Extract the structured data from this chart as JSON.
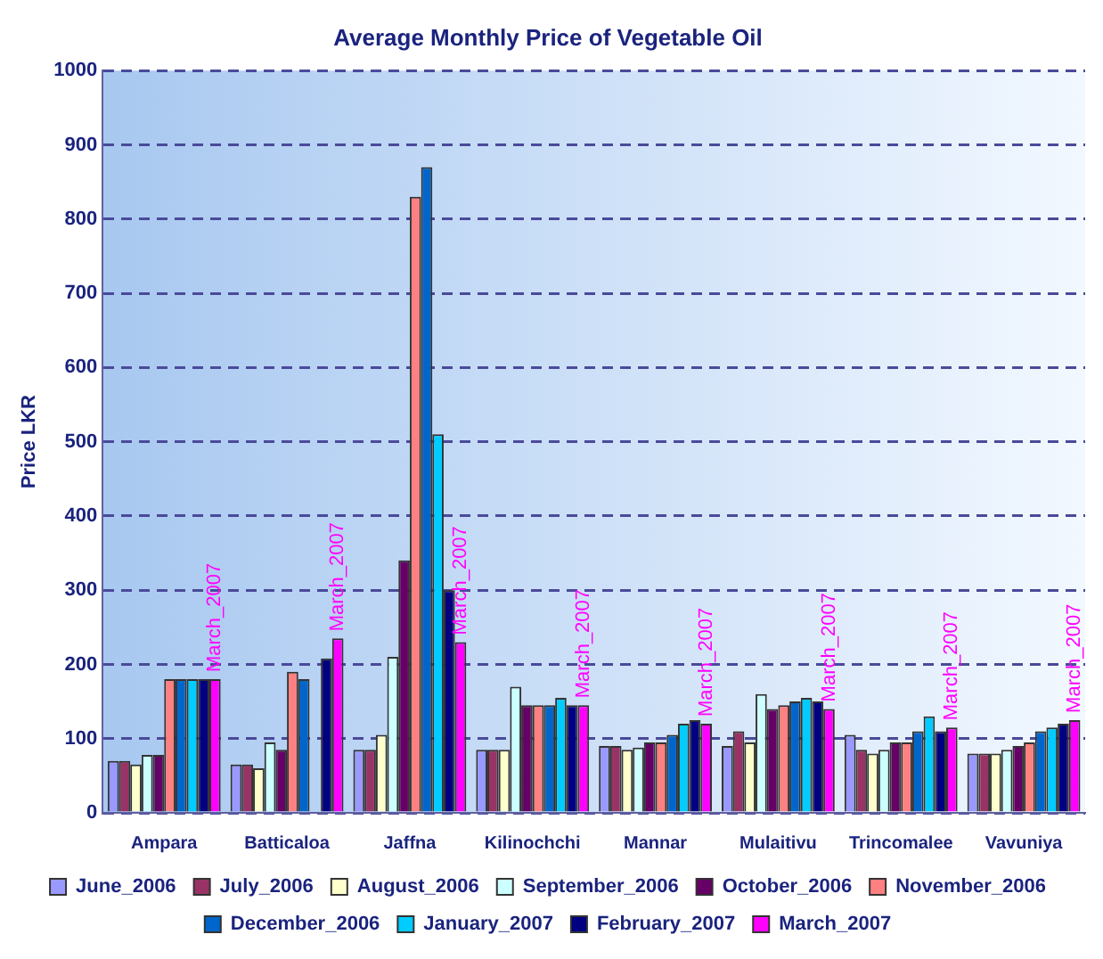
{
  "chart_data": {
    "type": "bar",
    "title": "Average Monthly Price of Vegetable Oil",
    "ylabel": "Price LKR",
    "categories": [
      "Ampara",
      "Batticaloa",
      "Jaffna",
      "Kilinochchi",
      "Mannar",
      "Mulaitivu",
      "Trincomalee",
      "Vavuniya"
    ],
    "series": [
      {
        "name": "June_2006",
        "color": "#9999ff",
        "values": [
          70,
          65,
          85,
          85,
          90,
          90,
          105,
          80
        ]
      },
      {
        "name": "July_2006",
        "color": "#993366",
        "values": [
          70,
          65,
          85,
          85,
          90,
          110,
          85,
          80
        ]
      },
      {
        "name": "August_2006",
        "color": "#ffffcc",
        "values": [
          65,
          60,
          105,
          85,
          85,
          95,
          80,
          80
        ]
      },
      {
        "name": "September_2006",
        "color": "#ccffff",
        "values": [
          78,
          95,
          210,
          170,
          88,
          160,
          85,
          85
        ]
      },
      {
        "name": "October_2006",
        "color": "#660066",
        "values": [
          78,
          85,
          340,
          145,
          95,
          140,
          95,
          90
        ]
      },
      {
        "name": "November_2006",
        "color": "#ff8080",
        "values": [
          180,
          190,
          830,
          145,
          95,
          145,
          95,
          95
        ]
      },
      {
        "name": "December_2006",
        "color": "#0066cc",
        "values": [
          180,
          180,
          870,
          145,
          105,
          150,
          110,
          110
        ]
      },
      {
        "name": "January_2007",
        "color": "#00ccff",
        "values": [
          180,
          null,
          510,
          155,
          120,
          155,
          130,
          115
        ]
      },
      {
        "name": "February_2007",
        "color": "#000080",
        "values": [
          180,
          208,
          300,
          145,
          125,
          150,
          110,
          120
        ]
      },
      {
        "name": "March_2007",
        "color": "#ff00ff",
        "values": [
          180,
          235,
          230,
          145,
          120,
          140,
          115,
          125
        ]
      }
    ],
    "annotations": [
      "March_2007",
      "March_2007",
      "March_2007",
      "March_2007",
      "March_2007",
      "March_2007",
      "March_2007",
      "March_2007"
    ],
    "ylim": [
      0,
      1000
    ],
    "yticks": [
      0,
      100,
      200,
      300,
      400,
      500,
      600,
      700,
      800,
      900,
      1000
    ],
    "grid": "y",
    "legend": "bottom"
  }
}
